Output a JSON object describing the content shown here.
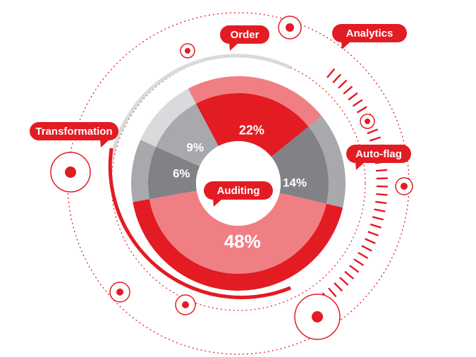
{
  "colors": {
    "red": "#e31b23",
    "pink": "#f07f84",
    "grey_light": "#d9dadc",
    "grey_mid": "#a8a9ac",
    "grey_dark": "#818286",
    "white": "#ffffff"
  },
  "chart_data": {
    "type": "pie",
    "title": "",
    "segments": [
      {
        "label": "Order",
        "value": 22,
        "display": "22%"
      },
      {
        "label": "Analytics",
        "value": 14,
        "display": "14%"
      },
      {
        "label": "Auditing",
        "value": 48,
        "display": "48%"
      },
      {
        "label": "Transformation",
        "value": 6,
        "display": "6%"
      },
      {
        "label": "Order",
        "value": 9,
        "display": "9%"
      }
    ],
    "callouts": [
      "Order",
      "Analytics",
      "Transformation",
      "Auto-flag",
      "Auditing"
    ]
  }
}
